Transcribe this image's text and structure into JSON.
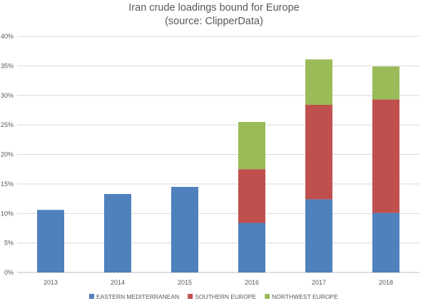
{
  "chart_data": {
    "type": "bar",
    "stacked": true,
    "title": "Iran crude loadings bound for Europe",
    "subtitle": "(source: ClipperData)",
    "xlabel": "",
    "ylabel": "",
    "categories": [
      "2013",
      "2014",
      "2015",
      "2016",
      "2017",
      "2018"
    ],
    "ylim": [
      0,
      40
    ],
    "yticks": [
      0,
      5,
      10,
      15,
      20,
      25,
      30,
      35,
      40
    ],
    "ytick_labels": [
      "0%",
      "5%",
      "10%",
      "15%",
      "20%",
      "25%",
      "30%",
      "35%",
      "40%"
    ],
    "grid": true,
    "legend_position": "bottom",
    "series": [
      {
        "name": "EASTERN MEDITERRANEAN",
        "color": "#4f81bd",
        "values": [
          10.6,
          13.3,
          14.5,
          8.4,
          12.4,
          10.1
        ]
      },
      {
        "name": "SOUTHERN EUROPE",
        "color": "#c0504d",
        "values": [
          0,
          0,
          0,
          9.1,
          16.0,
          19.2
        ]
      },
      {
        "name": "NORTHWEST EUROPE",
        "color": "#9bbb59",
        "values": [
          0,
          0,
          0,
          8.0,
          7.7,
          5.6
        ]
      }
    ]
  }
}
